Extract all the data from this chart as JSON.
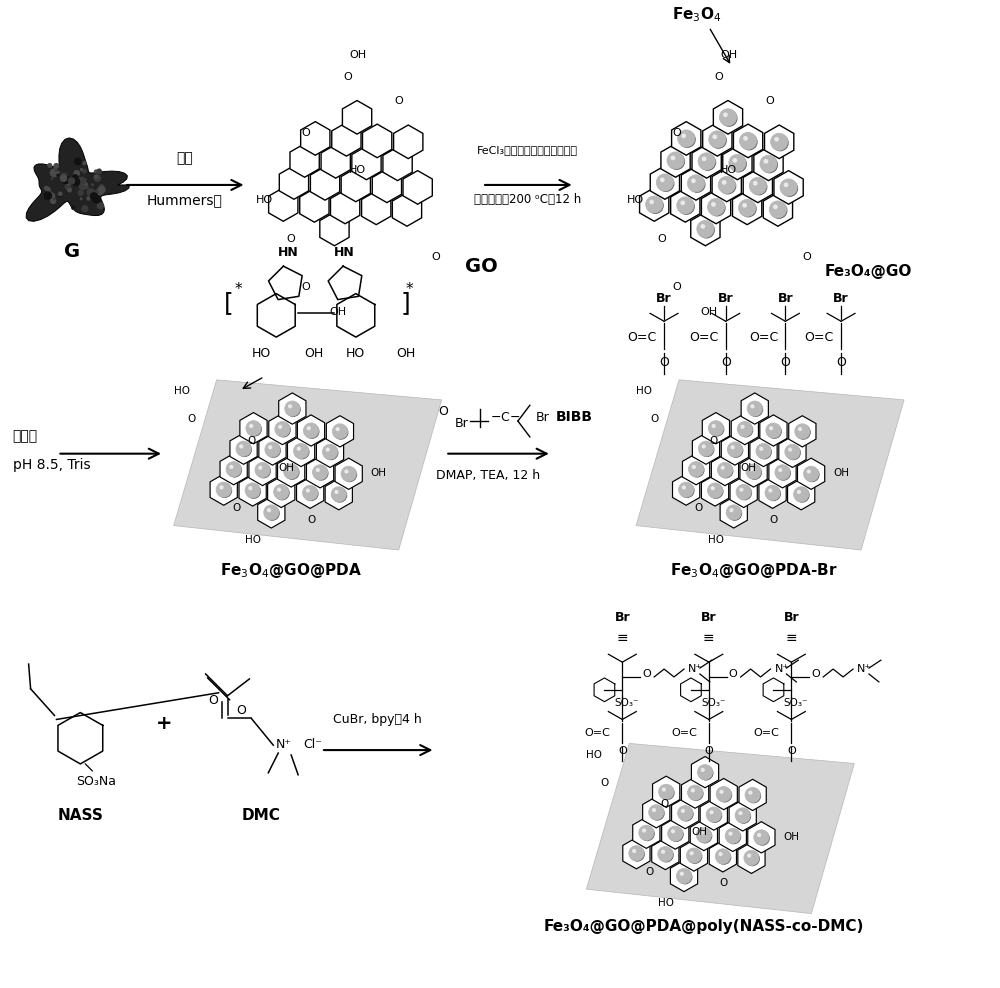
{
  "bg_color": "#ffffff",
  "fig_width": 10.0,
  "fig_height": 9.88,
  "row1": {
    "G_label": "G",
    "arrow1_text_top": "氧化",
    "arrow1_text_bot": "Hummers法",
    "GO_label": "GO",
    "arrow2_text_line1": "FeCl₃，柠檬酸钠，无水醋酸钠",
    "arrow2_text_line2": "溶剂热法，200 ᵒC，12 h",
    "Fe3O4_label": "Fe₃O₄",
    "Fe3O4_GO_label": "Fe₃O₄@GO"
  },
  "row2": {
    "arrow_left_top": "多巴胺",
    "arrow_left_bot": "pH 8.5, Tris",
    "PDA_label": "Fe₃O₄@GO@PDA",
    "BIBB_label": "BIBB",
    "arrow_mid_line2": "DMAP, TEA, 12 h",
    "PDA_Br_label": "Fe₃O₄@GO@PDA-Br"
  },
  "row3": {
    "NASS_label": "NASS",
    "DMC_label": "DMC",
    "arrow_text_line1": "CuBr, bpy，4 h",
    "product_label": "Fe₃O₄@GO@PDA@poly(NASS-co-DMC)"
  }
}
